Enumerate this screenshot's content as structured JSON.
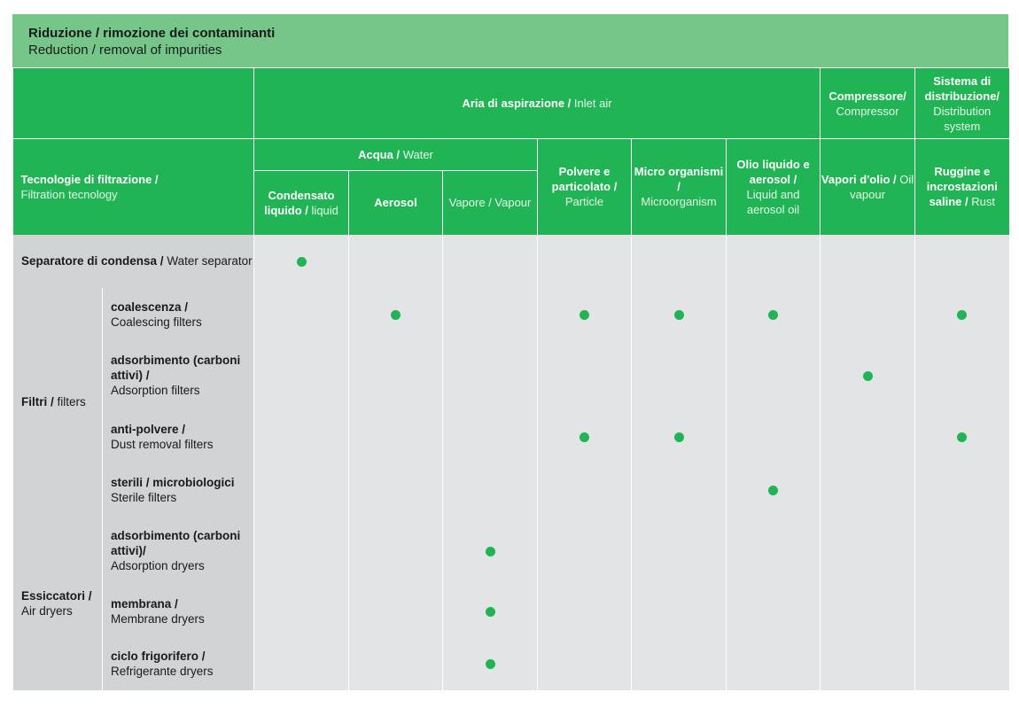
{
  "title": {
    "it": "Riduzione / rimozione dei contaminanti",
    "en": "Reduction / removal of impurities"
  },
  "header": {
    "tech": {
      "it": "Tecnologie di filtrazione /",
      "en": "Filtration tecnology"
    },
    "inlet": {
      "it": "Aria di aspirazione /",
      "en": "Inlet air"
    },
    "compressor": {
      "it": "Compressore/",
      "en": "Compressor"
    },
    "distribution": {
      "it": "Sistema di distribuzione/",
      "en": "Distribution system"
    },
    "water": {
      "it": "Acqua /",
      "en": "Water"
    },
    "columns": [
      {
        "it": "Condensato liquido /",
        "en": "liquid"
      },
      {
        "it": "Aerosol",
        "en": ""
      },
      {
        "it": "",
        "en": "Vapore / Vapour"
      },
      {
        "it": "Polvere e particolato /",
        "en": "Particle"
      },
      {
        "it": "Micro organismi /",
        "en": "Microorganism"
      },
      {
        "it": "Olio liquido e aerosol /",
        "en": "Liquid and aerosol oil"
      },
      {
        "it": "Vapori d'olio /",
        "en": "Oil vapour"
      },
      {
        "it": "Ruggine e incrostazioni saline /",
        "en": "Rust"
      }
    ]
  },
  "rows": [
    {
      "group": {
        "it": "Separatore di condensa /",
        "en": "Water separator"
      },
      "marks": [
        1,
        0,
        0,
        0,
        0,
        0,
        0,
        0
      ]
    },
    {
      "group": {
        "it": "Filtri /",
        "en": "filters"
      },
      "sub": {
        "it": "coalescenza /",
        "en": "Coalescing filters"
      },
      "marks": [
        0,
        1,
        0,
        1,
        1,
        1,
        0,
        1
      ]
    },
    {
      "sub": {
        "it": "adsorbimento (carboni attivi) /",
        "en": "Adsorption filters"
      },
      "marks": [
        0,
        0,
        0,
        0,
        0,
        0,
        1,
        0
      ]
    },
    {
      "sub": {
        "it": "anti-polvere /",
        "en": "Dust removal filters"
      },
      "marks": [
        0,
        0,
        0,
        1,
        1,
        0,
        0,
        1
      ]
    },
    {
      "sub": {
        "it": "sterili / microbiologici",
        "en": "Sterile filters"
      },
      "marks": [
        0,
        0,
        0,
        0,
        0,
        1,
        0,
        0
      ]
    },
    {
      "group": {
        "it": "Essiccatori /",
        "en": "Air dryers"
      },
      "sub": {
        "it": "adsorbimento (carboni attivi)/",
        "en": "Adsorption dryers"
      },
      "marks": [
        0,
        0,
        1,
        0,
        0,
        0,
        0,
        0
      ]
    },
    {
      "sub": {
        "it": "membrana /",
        "en": "Membrane dryers"
      },
      "marks": [
        0,
        0,
        1,
        0,
        0,
        0,
        0,
        0
      ]
    },
    {
      "sub": {
        "it": "ciclo frigorifero /",
        "en": "Refrigerante dryers"
      },
      "marks": [
        0,
        0,
        1,
        0,
        0,
        0,
        0,
        0
      ]
    }
  ]
}
